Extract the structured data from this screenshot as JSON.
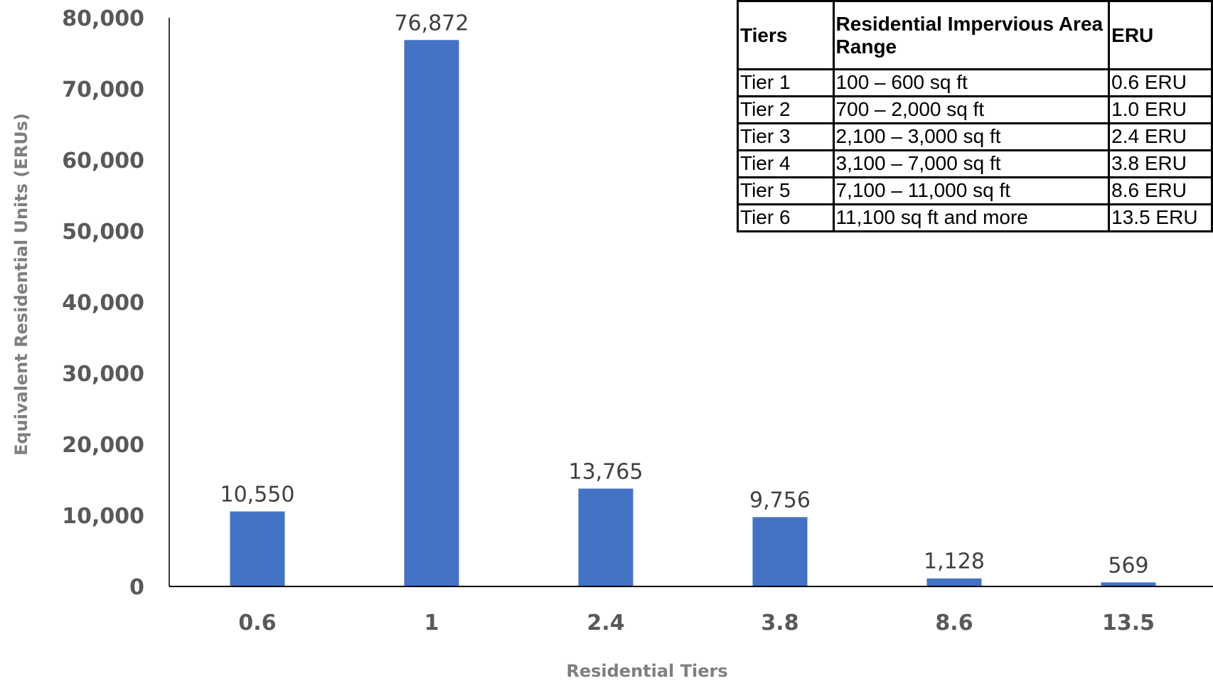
{
  "chart_data": {
    "type": "bar",
    "categories": [
      "0.6",
      "1",
      "2.4",
      "3.8",
      "8.6",
      "13.5"
    ],
    "values": [
      10550,
      76872,
      13765,
      9756,
      1128,
      569
    ],
    "data_labels": [
      "10,550",
      "76,872",
      "13,765",
      "9,756",
      "1,128",
      "569"
    ],
    "title": "",
    "xlabel": "Residential Tiers",
    "ylabel": "Equivalent Residential Units (ERUs)",
    "ylim": [
      0,
      80000
    ],
    "yticks": [
      "0",
      "10,000",
      "20,000",
      "30,000",
      "40,000",
      "50,000",
      "60,000",
      "70,000",
      "80,000"
    ],
    "bar_color": "#4472C4",
    "grid": false,
    "legend": "none"
  },
  "table": {
    "headers": [
      "Tiers",
      "Residential Impervious Area Range",
      "ERU"
    ],
    "rows": [
      [
        "Tier 1",
        "100 – 600 sq ft",
        "0.6 ERU"
      ],
      [
        "Tier 2",
        "700 – 2,000 sq ft",
        "1.0 ERU"
      ],
      [
        "Tier 3",
        "2,100 – 3,000 sq ft",
        "2.4 ERU"
      ],
      [
        "Tier 4",
        "3,100 – 7,000 sq ft",
        "3.8 ERU"
      ],
      [
        "Tier 5",
        "7,100 – 11,000 sq ft",
        "8.6 ERU"
      ],
      [
        "Tier 6",
        "11,100 sq ft and more",
        "13.5 ERU"
      ]
    ]
  }
}
